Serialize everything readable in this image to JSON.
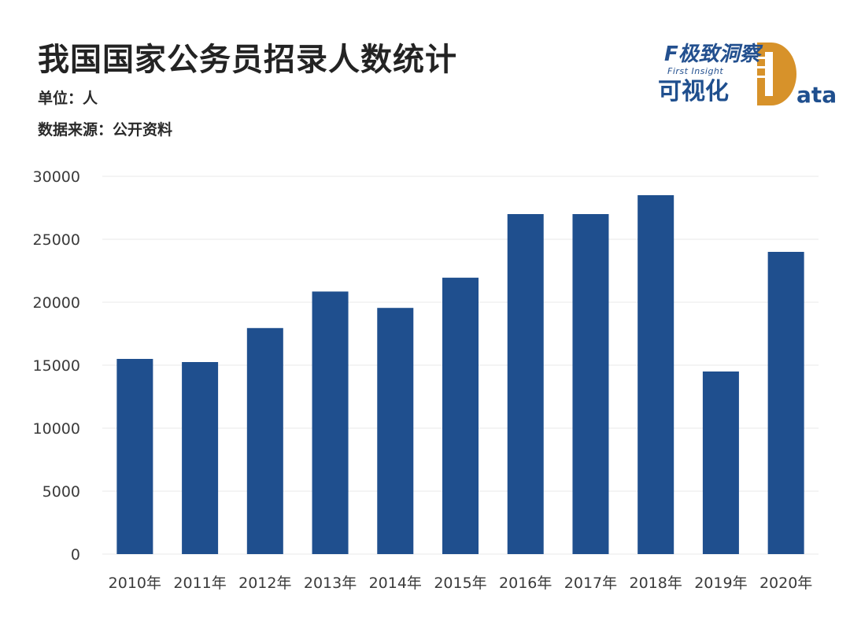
{
  "title": "我国国家公务员招录人数统计",
  "unit_line": "单位：人",
  "source_line": "数据来源：公开资料",
  "logo": {
    "brand": "F极致洞察",
    "brand_en": "First Insight",
    "subtitle": "可视化",
    "data_word": "ata"
  },
  "colors": {
    "bar": "#1f4f8e",
    "grid": "#e8e8e8",
    "title": "#232323",
    "logo_accent": "#d7922a"
  },
  "chart_data": {
    "type": "bar",
    "title": "我国国家公务员招录人数统计",
    "xlabel": "",
    "ylabel": "",
    "categories": [
      "2010年",
      "2011年",
      "2012年",
      "2013年",
      "2014年",
      "2015年",
      "2016年",
      "2017年",
      "2018年",
      "2019年",
      "2020年"
    ],
    "values": [
      15500,
      15250,
      17950,
      20850,
      19550,
      21950,
      27000,
      27000,
      28500,
      14500,
      24000
    ],
    "ylim": [
      0,
      30000
    ],
    "yticks": [
      0,
      5000,
      10000,
      15000,
      20000,
      25000,
      30000
    ],
    "grid": true,
    "legend": "none"
  }
}
